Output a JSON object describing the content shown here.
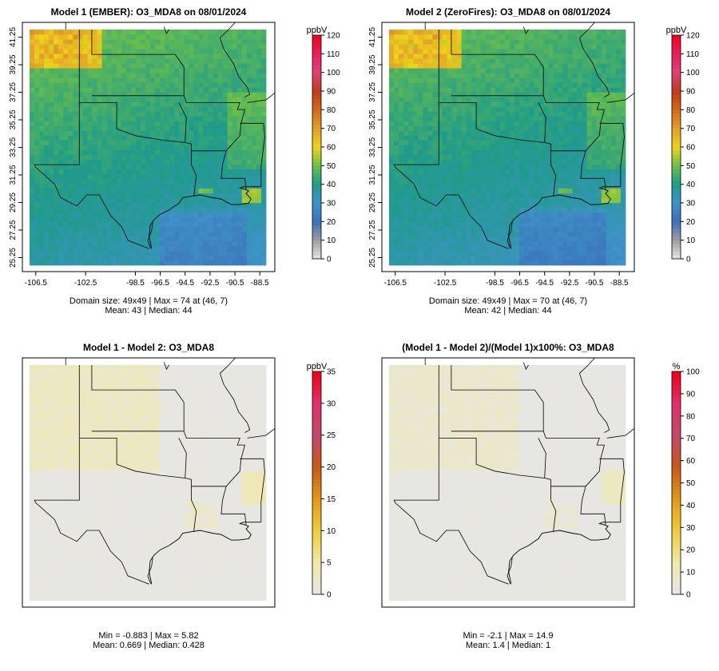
{
  "chart_data": [
    {
      "type": "heatmap",
      "title": "Model 1 (EMBER): O3_MDA8 on 08/01/2024",
      "xlabel": "",
      "ylabel": "",
      "x_ticks": [
        "-106.5",
        "-102.5",
        "-98.5",
        "-96.5",
        "-94.5",
        "-92.5",
        "-90.5",
        "-88.5"
      ],
      "y_ticks": [
        "25.25",
        "27.25",
        "29.25",
        "31.25",
        "33.25",
        "35.25",
        "37.25",
        "39.25",
        "41.25"
      ],
      "colorbar": {
        "unit": "ppbV",
        "ticks": [
          "0",
          "10",
          "20",
          "30",
          "40",
          "50",
          "60",
          "70",
          "80",
          "90",
          "100",
          "110",
          "120"
        ],
        "min": 0,
        "max": 120
      },
      "stats_line1": "Domain size: 49x49 | Max = 74 at (46, 7)",
      "stats_line2": "Mean: 43 |  Median: 44",
      "field_mean": 43,
      "field_max": 74
    },
    {
      "type": "heatmap",
      "title": "Model 2 (ZeroFires): O3_MDA8 on 08/01/2024",
      "xlabel": "",
      "ylabel": "",
      "x_ticks": [
        "-106.5",
        "-102.5",
        "-98.5",
        "-96.5",
        "-94.5",
        "-92.5",
        "-90.5",
        "-88.5"
      ],
      "y_ticks": [
        "25.25",
        "27.25",
        "29.25",
        "31.25",
        "33.25",
        "35.25",
        "37.25",
        "39.25",
        "41.25"
      ],
      "colorbar": {
        "unit": "ppbV",
        "ticks": [
          "0",
          "10",
          "20",
          "30",
          "40",
          "50",
          "60",
          "70",
          "80",
          "90",
          "100",
          "110",
          "120"
        ],
        "min": 0,
        "max": 120
      },
      "stats_line1": "Domain size: 49x49 | Max = 70 at (46, 7)",
      "stats_line2": "Mean: 42 |  Median: 44",
      "field_mean": 42,
      "field_max": 70
    },
    {
      "type": "heatmap",
      "title": "Model 1 - Model 2: O3_MDA8",
      "colorbar": {
        "unit": "ppbV",
        "ticks": [
          "0",
          "5",
          "10",
          "15",
          "20",
          "25",
          "30",
          "35"
        ],
        "min": 0,
        "max": 35
      },
      "stats_line1": "Min = -0.883 | Max = 5.82",
      "stats_line2": "Mean: 0.669 |  Median: 0.428",
      "field_mean": 0.669,
      "field_max": 5.82
    },
    {
      "type": "heatmap",
      "title": "(Model 1 - Model 2)/(Model 1)x100%: O3_MDA8",
      "colorbar": {
        "unit": "%",
        "ticks": [
          "0",
          "10",
          "20",
          "30",
          "40",
          "50",
          "60",
          "70",
          "80",
          "90",
          "100"
        ],
        "min": 0,
        "max": 100
      },
      "stats_line1": "Min = -2.1 | Max = 14.9",
      "stats_line2": "Mean: 1.4 |  Median: 1",
      "field_mean": 1.4,
      "field_max": 14.9
    }
  ],
  "colors": {
    "scale_stops": [
      "#e6e6e6",
      "#9e9e9e",
      "#3a6fb8",
      "#3f93c8",
      "#1f9b8a",
      "#6cc04a",
      "#f0d21a",
      "#e0a02a",
      "#d06a18",
      "#c03a1a",
      "#e0407a",
      "#e8205a",
      "#f00020"
    ],
    "diff_stops": [
      "#e6e6e6",
      "#f0e9a8",
      "#f0cc3a",
      "#e09a18",
      "#c8581a",
      "#c04a6a",
      "#e0306a",
      "#f00010"
    ]
  }
}
